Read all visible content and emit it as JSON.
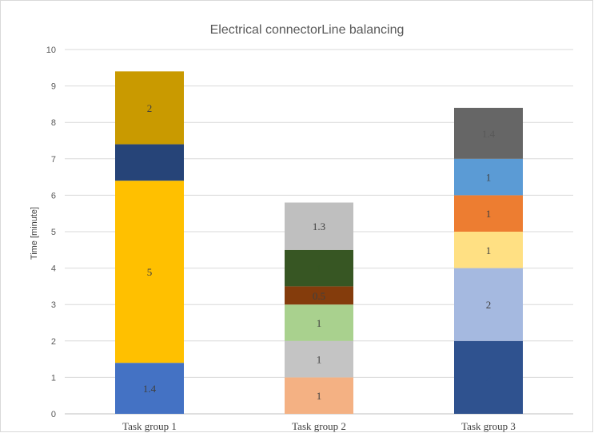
{
  "chart_data": {
    "type": "bar",
    "stacked": true,
    "title": "Electrical connectorLine balancing",
    "xlabel": "",
    "ylabel": "Time [minute]",
    "ylim": [
      0,
      10
    ],
    "yticks": [
      0,
      1,
      2,
      3,
      4,
      5,
      6,
      7,
      8,
      9,
      10
    ],
    "grid": true,
    "legend": "none",
    "categories": [
      "Task group 1",
      "Task group 2",
      "Task group 3"
    ],
    "stacks": [
      {
        "category": "Task group 1",
        "segments": [
          {
            "value": 1.4,
            "label": "1.4",
            "color": "#4472c4",
            "label_color": "#404040"
          },
          {
            "value": 5,
            "label": "5",
            "color": "#ffc000",
            "label_color": "#404040"
          },
          {
            "value": 1,
            "label": "1",
            "color": "#264478",
            "label_color": "#264478"
          },
          {
            "value": 2,
            "label": "2",
            "color": "#c99a00",
            "label_color": "#404040"
          }
        ]
      },
      {
        "category": "Task group 2",
        "segments": [
          {
            "value": 1,
            "label": "1",
            "color": "#f4b183",
            "label_color": "#404040"
          },
          {
            "value": 1,
            "label": "1",
            "color": "#c4c4c4",
            "label_color": "#404040"
          },
          {
            "value": 1,
            "label": "1",
            "color": "#a9d18e",
            "label_color": "#404040"
          },
          {
            "value": 0.5,
            "label": "0.5",
            "color": "#843c0c",
            "label_color": "#404040"
          },
          {
            "value": 1,
            "label": "1",
            "color": "#375623",
            "label_color": "#375623"
          },
          {
            "value": 1.3,
            "label": "1.3",
            "color": "#bfbfbf",
            "label_color": "#404040"
          }
        ]
      },
      {
        "category": "Task group 3",
        "segments": [
          {
            "value": 2,
            "label": "2",
            "color": "#2f528f",
            "label_color": "#2f528f"
          },
          {
            "value": 2,
            "label": "2",
            "color": "#a5b9e0",
            "label_color": "#404040"
          },
          {
            "value": 1,
            "label": "1",
            "color": "#ffe083",
            "label_color": "#404040"
          },
          {
            "value": 1,
            "label": "1",
            "color": "#ed7d31",
            "label_color": "#404040"
          },
          {
            "value": 1,
            "label": "1",
            "color": "#5b9bd5",
            "label_color": "#404040"
          },
          {
            "value": 1.4,
            "label": "1.4",
            "color": "#666666",
            "label_color": "#595959"
          }
        ]
      }
    ]
  }
}
